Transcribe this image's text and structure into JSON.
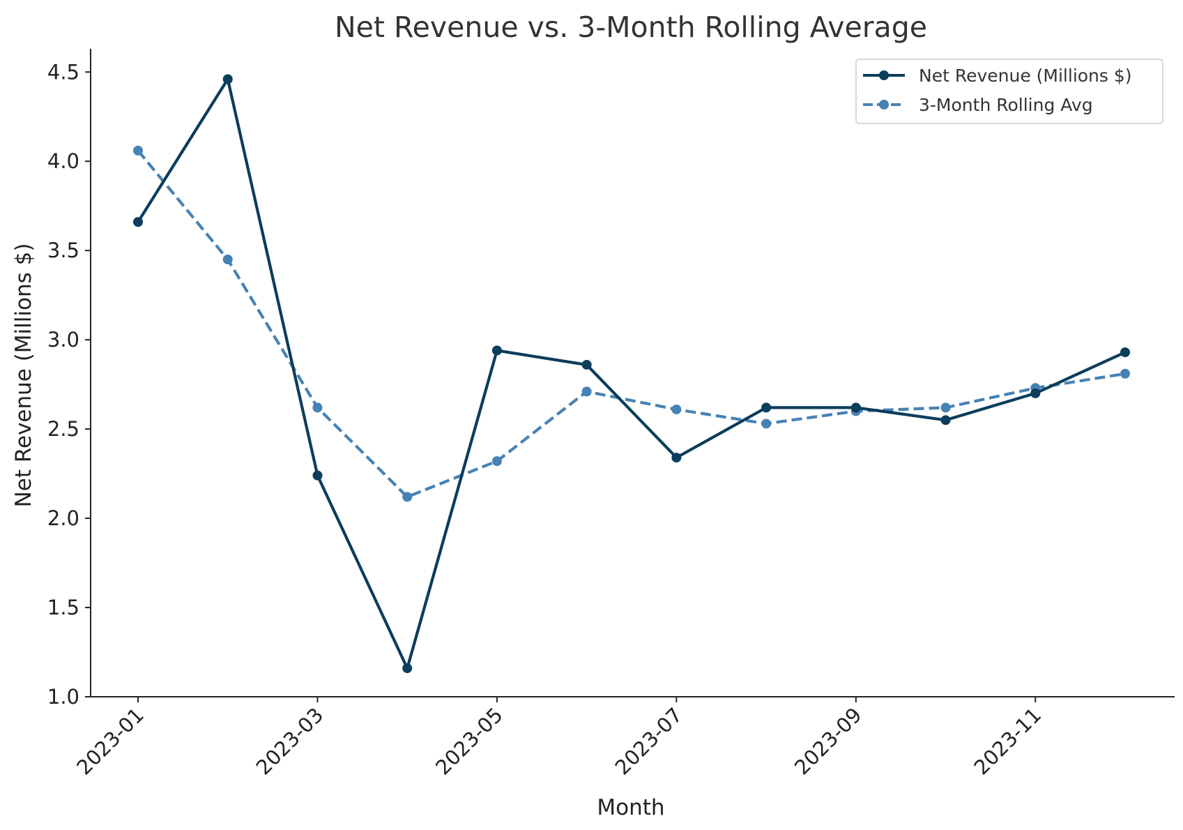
{
  "chart_data": {
    "type": "line",
    "title": "Net Revenue vs. 3-Month Rolling Average",
    "xlabel": "Month",
    "ylabel": "Net Revenue (Millions $)",
    "x": [
      "2023-01",
      "2023-02",
      "2023-03",
      "2023-04",
      "2023-05",
      "2023-06",
      "2023-07",
      "2023-08",
      "2023-09",
      "2023-10",
      "2023-11",
      "2023-12"
    ],
    "x_ticks": [
      "2023-01",
      "2023-03",
      "2023-05",
      "2023-07",
      "2023-09",
      "2023-11"
    ],
    "y_ticks": [
      "1.0",
      "1.5",
      "2.0",
      "2.5",
      "3.0",
      "3.5",
      "4.0",
      "4.5"
    ],
    "ylim": [
      1.0,
      4.63
    ],
    "grid": false,
    "legend_position": "top-right",
    "series": [
      {
        "name": "Net Revenue (Millions $)",
        "style": "solid",
        "color": "#0b3d5c",
        "values": [
          3.66,
          4.46,
          2.24,
          1.16,
          2.94,
          2.86,
          2.34,
          2.62,
          2.62,
          2.55,
          2.7,
          2.93
        ]
      },
      {
        "name": "3-Month Rolling Avg",
        "style": "dashed",
        "color": "#4682b4",
        "values": [
          4.06,
          3.45,
          2.62,
          2.12,
          2.32,
          2.71,
          2.61,
          2.53,
          2.6,
          2.62,
          2.73,
          2.81
        ]
      }
    ]
  }
}
